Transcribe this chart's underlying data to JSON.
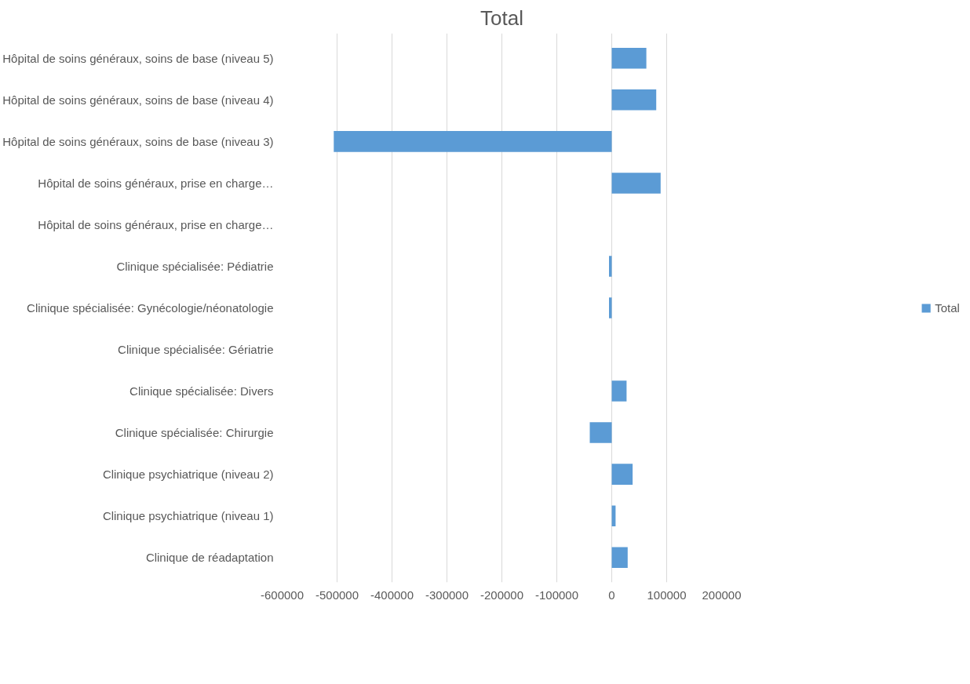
{
  "chart_data": {
    "type": "bar",
    "orientation": "horizontal",
    "title": "Total",
    "categories": [
      "Hôpital de soins généraux, soins de base (niveau 5)",
      "Hôpital de soins généraux, soins de base (niveau 4)",
      "Hôpital de soins généraux, soins de base (niveau 3)",
      "Hôpital de soins généraux, prise en charge…",
      "Hôpital de soins généraux, prise en charge…",
      "Clinique spécialisée: Pédiatrie",
      "Clinique spécialisée: Gynécologie/néonatologie",
      "Clinique spécialisée: Gériatrie",
      "Clinique spécialisée: Divers",
      "Clinique spécialisée: Chirurgie",
      "Clinique psychiatrique (niveau 2)",
      "Clinique psychiatrique (niveau 1)",
      "Clinique de réadaptation"
    ],
    "series": [
      {
        "name": "Total",
        "color": "#5b9bd5",
        "values": [
          63000,
          81000,
          -506000,
          89000,
          0,
          -5000,
          -5000,
          0,
          27000,
          -40000,
          38000,
          7000,
          29000
        ]
      }
    ],
    "xlim": [
      -600000,
      200000
    ],
    "xticks": [
      -600000,
      -500000,
      -400000,
      -300000,
      -200000,
      -100000,
      0,
      100000,
      200000
    ],
    "grid": "x",
    "legend": "right"
  }
}
